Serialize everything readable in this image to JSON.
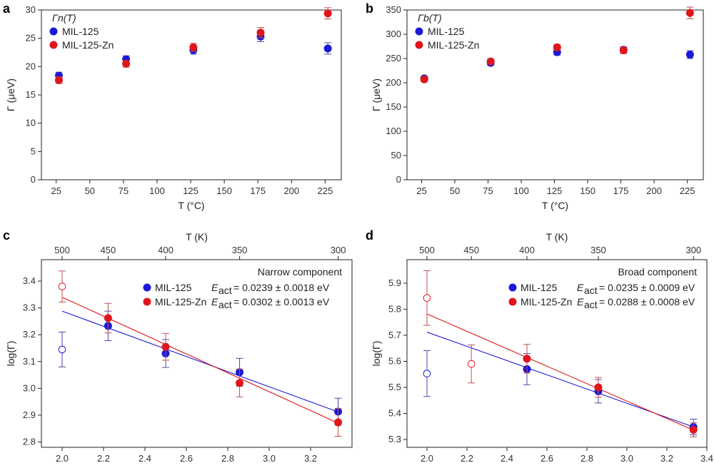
{
  "colors": {
    "mil125": "#1a1ad6",
    "mil125zn": "#e0161c"
  },
  "chart_data": [
    {
      "id": "a",
      "panel_label": "a",
      "type": "scatter",
      "ylabel": "Γ (μeV)",
      "xlabel": "T (°C)",
      "legend_title": "Γn(T)",
      "xlim": [
        14,
        237
      ],
      "ylim": [
        0,
        30
      ],
      "xticks": [
        "25",
        "50",
        "75",
        "100",
        "125",
        "150",
        "175",
        "200",
        "225"
      ],
      "yticks": [
        "0",
        "5",
        "10",
        "15",
        "20",
        "25",
        "30"
      ],
      "series": [
        {
          "name": "MIL-125",
          "color": "#1a1ad6",
          "points": [
            {
              "x": 27,
              "y": 18.4,
              "err": 0.6
            },
            {
              "x": 77,
              "y": 21.3,
              "err": 0.6
            },
            {
              "x": 127,
              "y": 22.9,
              "err": 0.7
            },
            {
              "x": 177,
              "y": 25.3,
              "err": 0.9
            },
            {
              "x": 227,
              "y": 23.2,
              "err": 1.0
            }
          ]
        },
        {
          "name": "MIL-125-Zn",
          "color": "#e0161c",
          "points": [
            {
              "x": 27,
              "y": 17.6,
              "err": 0.6
            },
            {
              "x": 77,
              "y": 20.5,
              "err": 0.6
            },
            {
              "x": 127,
              "y": 23.4,
              "err": 0.7
            },
            {
              "x": 177,
              "y": 26.0,
              "err": 0.9
            },
            {
              "x": 227,
              "y": 29.4,
              "err": 1.0
            }
          ]
        }
      ]
    },
    {
      "id": "b",
      "panel_label": "b",
      "type": "scatter",
      "ylabel": "Γ (μeV)",
      "xlabel": "T (°C)",
      "legend_title": "Γb(T)",
      "xlim": [
        14,
        237
      ],
      "ylim": [
        0,
        350
      ],
      "xticks": [
        "25",
        "50",
        "75",
        "100",
        "125",
        "150",
        "175",
        "200",
        "225"
      ],
      "yticks": [
        "0",
        "50",
        "100",
        "150",
        "200",
        "250",
        "300",
        "350"
      ],
      "series": [
        {
          "name": "MIL-125",
          "color": "#1a1ad6",
          "points": [
            {
              "x": 27,
              "y": 209,
              "err": 4
            },
            {
              "x": 77,
              "y": 241,
              "err": 5
            },
            {
              "x": 127,
              "y": 263,
              "err": 6
            },
            {
              "x": 177,
              "y": 268,
              "err": 6
            },
            {
              "x": 227,
              "y": 258,
              "err": 8
            }
          ]
        },
        {
          "name": "MIL-125-Zn",
          "color": "#e0161c",
          "points": [
            {
              "x": 27,
              "y": 207,
              "err": 4
            },
            {
              "x": 77,
              "y": 244,
              "err": 5
            },
            {
              "x": 127,
              "y": 273,
              "err": 6
            },
            {
              "x": 177,
              "y": 267,
              "err": 7
            },
            {
              "x": 227,
              "y": 344,
              "err": 12
            }
          ]
        }
      ]
    },
    {
      "id": "c",
      "panel_label": "c",
      "type": "scatter",
      "ylabel": "log(Γ)",
      "xlabel": "1,000/T (K⁻¹)",
      "top_label": "T (K)",
      "annotation": "Narrow component",
      "xlim": [
        1.9,
        3.4
      ],
      "ylim": [
        2.78,
        3.48
      ],
      "xticks": [
        "2.0",
        "2.2",
        "2.4",
        "2.6",
        "2.8",
        "3.0",
        "3.2"
      ],
      "yticks": [
        "2.8",
        "2.9",
        "3.0",
        "3.1",
        "3.2",
        "3.3",
        "3.4"
      ],
      "top_ticks": [
        "500",
        "450",
        "400",
        "350",
        "300"
      ],
      "series": [
        {
          "name": "MIL-125",
          "color": "#1a1ad6",
          "eact": "= 0.0239 ± 0.0018 eV",
          "fit": [
            [
              2.0,
              3.288
            ],
            [
              3.333,
              2.912
            ]
          ],
          "points": [
            {
              "x": 2.0,
              "y": 3.145,
              "err": 0.065,
              "open": true
            },
            {
              "x": 2.222,
              "y": 3.233,
              "err": 0.055
            },
            {
              "x": 2.5,
              "y": 3.13,
              "err": 0.052
            },
            {
              "x": 2.857,
              "y": 3.06,
              "err": 0.052
            },
            {
              "x": 3.333,
              "y": 2.913,
              "err": 0.05
            }
          ]
        },
        {
          "name": "MIL-125-Zn",
          "color": "#e0161c",
          "eact": "= 0.0302 ± 0.0013 eV",
          "fit": [
            [
              2.0,
              3.34
            ],
            [
              3.333,
              2.87
            ]
          ],
          "points": [
            {
              "x": 2.0,
              "y": 3.38,
              "err": 0.058,
              "open": true
            },
            {
              "x": 2.222,
              "y": 3.262,
              "err": 0.055
            },
            {
              "x": 2.5,
              "y": 3.155,
              "err": 0.05
            },
            {
              "x": 2.857,
              "y": 3.02,
              "err": 0.052
            },
            {
              "x": 3.333,
              "y": 2.873,
              "err": 0.052
            }
          ]
        }
      ]
    },
    {
      "id": "d",
      "panel_label": "d",
      "type": "scatter",
      "ylabel": "log(Γ)",
      "xlabel": "1,000/T (K⁻¹)",
      "top_label": "T (K)",
      "annotation": "Broad component",
      "xlim": [
        1.9,
        3.4
      ],
      "ylim": [
        5.27,
        5.99
      ],
      "xticks": [
        "2.0",
        "2.2",
        "2.4",
        "2.6",
        "2.8",
        "3.0",
        "3.2",
        "3.4"
      ],
      "yticks": [
        "5.3",
        "5.4",
        "5.5",
        "5.6",
        "5.7",
        "5.8",
        "5.9"
      ],
      "top_ticks": [
        "500",
        "450",
        "400",
        "350",
        "300"
      ],
      "series": [
        {
          "name": "MIL-125",
          "color": "#1a1ad6",
          "eact": "= 0.0235 ± 0.0009 eV",
          "fit": [
            [
              2.0,
              5.712
            ],
            [
              3.333,
              5.348
            ]
          ],
          "points": [
            {
              "x": 2.0,
              "y": 5.553,
              "err": 0.088,
              "open": true
            },
            {
              "x": 2.5,
              "y": 5.57,
              "err": 0.06
            },
            {
              "x": 2.857,
              "y": 5.485,
              "err": 0.045
            },
            {
              "x": 3.333,
              "y": 5.348,
              "err": 0.03
            }
          ]
        },
        {
          "name": "MIL-125-Zn",
          "color": "#e0161c",
          "eact": "= 0.0288 ± 0.0008 eV",
          "fit": [
            [
              2.0,
              5.782
            ],
            [
              3.333,
              5.336
            ]
          ],
          "points": [
            {
              "x": 2.0,
              "y": 5.843,
              "err": 0.105,
              "open": true
            },
            {
              "x": 2.222,
              "y": 5.59,
              "err": 0.073,
              "open": true
            },
            {
              "x": 2.5,
              "y": 5.61,
              "err": 0.055
            },
            {
              "x": 2.857,
              "y": 5.5,
              "err": 0.038
            },
            {
              "x": 3.333,
              "y": 5.337,
              "err": 0.027
            }
          ]
        }
      ]
    }
  ]
}
